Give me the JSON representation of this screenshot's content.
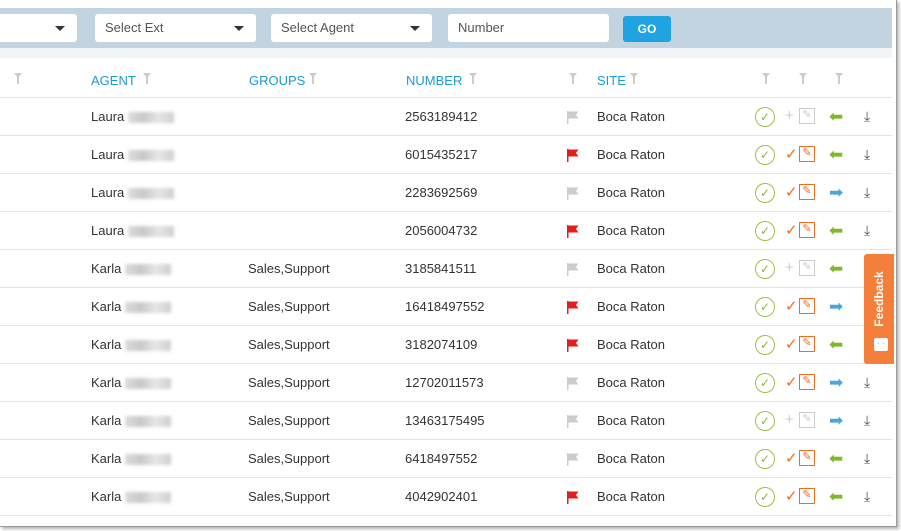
{
  "toolbar": {
    "ext_placeholder": "Select Ext",
    "agent_placeholder": "Select Agent",
    "number_placeholder": "Number",
    "go_label": "GO"
  },
  "columns": {
    "agent": "AGENT",
    "groups": "GROUPS",
    "number": "NUMBER",
    "site": "SITE"
  },
  "colors": {
    "accent": "#1a9ad6",
    "flag_red": "#e0201e",
    "flag_gray": "#cccccc",
    "inbound_green": "#7db928",
    "outbound_blue": "#4aa8d8",
    "edit_orange": "#f26b21"
  },
  "rows": [
    {
      "agent": "Laura",
      "groups": "",
      "number": "2563189412",
      "flag": "gray",
      "site": "Boca Raton",
      "status": "add",
      "direction": "inbound"
    },
    {
      "agent": "Laura",
      "groups": "",
      "number": "6015435217",
      "flag": "red",
      "site": "Boca Raton",
      "status": "checked",
      "direction": "inbound"
    },
    {
      "agent": "Laura",
      "groups": "",
      "number": "2283692569",
      "flag": "gray",
      "site": "Boca Raton",
      "status": "checked",
      "direction": "outbound"
    },
    {
      "agent": "Laura",
      "groups": "",
      "number": "2056004732",
      "flag": "red",
      "site": "Boca Raton",
      "status": "checked",
      "direction": "inbound"
    },
    {
      "agent": "Karla",
      "groups": "Sales,Support",
      "number": "3185841511",
      "flag": "gray",
      "site": "Boca Raton",
      "status": "add",
      "direction": "inbound"
    },
    {
      "agent": "Karla",
      "groups": "Sales,Support",
      "number": "16418497552",
      "flag": "red",
      "site": "Boca Raton",
      "status": "checked",
      "direction": "outbound"
    },
    {
      "agent": "Karla",
      "groups": "Sales,Support",
      "number": "3182074109",
      "flag": "red",
      "site": "Boca Raton",
      "status": "checked",
      "direction": "inbound"
    },
    {
      "agent": "Karla",
      "groups": "Sales,Support",
      "number": "12702011573",
      "flag": "gray",
      "site": "Boca Raton",
      "status": "checked",
      "direction": "outbound"
    },
    {
      "agent": "Karla",
      "groups": "Sales,Support",
      "number": "13463175495",
      "flag": "gray",
      "site": "Boca Raton",
      "status": "add",
      "direction": "outbound"
    },
    {
      "agent": "Karla",
      "groups": "Sales,Support",
      "number": "6418497552",
      "flag": "gray",
      "site": "Boca Raton",
      "status": "checked",
      "direction": "inbound"
    },
    {
      "agent": "Karla",
      "groups": "Sales,Support",
      "number": "4042902401",
      "flag": "red",
      "site": "Boca Raton",
      "status": "checked",
      "direction": "inbound"
    }
  ],
  "feedback": {
    "label": "Feedback"
  }
}
